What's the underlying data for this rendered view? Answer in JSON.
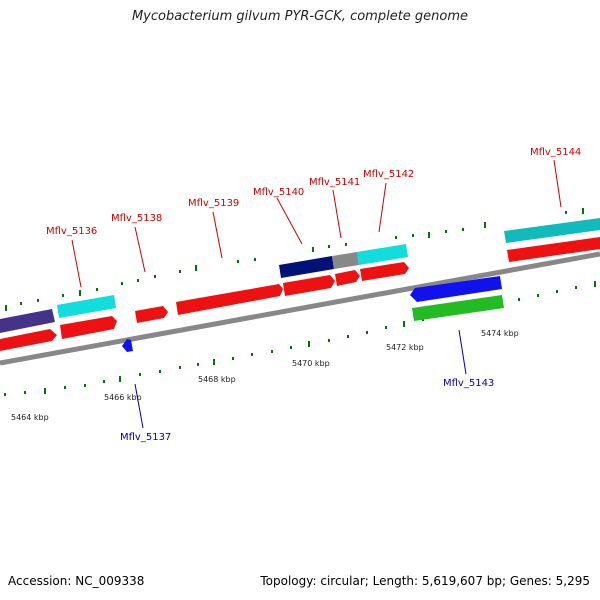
{
  "title": "Mycobacterium gilvum PYR-GCK, complete genome",
  "footer": {
    "accession": "Accession: NC_009338",
    "summary": "Topology: circular; Length: 5,619,607 bp; Genes: 5,295"
  },
  "colors": {
    "forward_label": "#cc0000",
    "reverse_label": "#0000aa",
    "backbone": "#888888",
    "tick": "#007700",
    "red_cds": "#ee1111",
    "cyan_gene": "#11dddd",
    "navy_gene": "#001177",
    "gray_gene": "#888888",
    "blue_cds": "#1111ee",
    "green_gene": "#22bb22",
    "slate_gene": "#443388"
  },
  "gene_labels": [
    {
      "id": "Mflv_5136",
      "strand": "forward"
    },
    {
      "id": "Mflv_5138",
      "strand": "forward"
    },
    {
      "id": "Mflv_5139",
      "strand": "forward"
    },
    {
      "id": "Mflv_5140",
      "strand": "forward"
    },
    {
      "id": "Mflv_5141",
      "strand": "forward"
    },
    {
      "id": "Mflv_5142",
      "strand": "forward"
    },
    {
      "id": "Mflv_5144",
      "strand": "forward"
    },
    {
      "id": "Mflv_5137",
      "strand": "reverse"
    },
    {
      "id": "Mflv_5143",
      "strand": "reverse"
    }
  ],
  "kbp_labels": [
    "5464 kbp",
    "5466 kbp",
    "5468 kbp",
    "5470 kbp",
    "5472 kbp",
    "5474 kbp"
  ]
}
